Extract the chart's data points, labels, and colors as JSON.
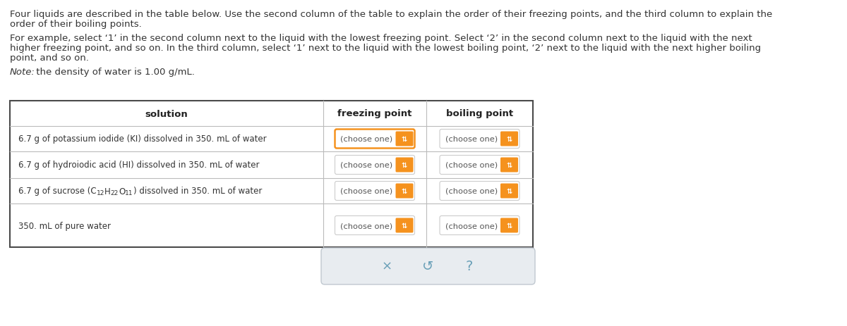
{
  "background_color": "#ffffff",
  "text_color": "#333333",
  "header_text_color": "#222222",
  "para1_line1": "Four liquids are described in the table below. Use the second column of the table to explain the order of their freezing points, and the third column to explain the",
  "para1_line2": "order of their boiling points.",
  "para2_line1": "For example, select ‘1’ in the second column next to the liquid with the lowest freezing point. Select ‘2’ in the second column next to the liquid with the next",
  "para2_line2": "higher freezing point, and so on. In the third column, select ‘1’ next to the liquid with the lowest boiling point, ‘2’ next to the liquid with the next higher boiling",
  "para2_line3": "point, and so on.",
  "note_italic": "Note:",
  "note_rest": " the density of water is 1.00 g/mL.",
  "col_headers": [
    "solution",
    "freezing point",
    "boiling point"
  ],
  "rows": [
    "6.7 g of potassium iodide (KI) dissolved in 350. mL of water",
    "6.7 g of hydroiodic acid (HI) dissolved in 350. mL of water",
    "sucrose_special",
    "350. mL of pure water"
  ],
  "sucrose_normal": "6.7 g of sucrose (C",
  "sucrose_sub1": "12",
  "sucrose_mid1": "H",
  "sucrose_sub2": "22",
  "sucrose_mid2": "O",
  "sucrose_sub3": "11",
  "sucrose_end": ") dissolved in 350. mL of water",
  "dropdown_text": "(choose one)",
  "dropdown_bg": "#ffffff",
  "dropdown_border": "#cccccc",
  "dropdown_btn_color": "#f5921e",
  "first_row_highlight_border": "#f5921e",
  "table_border_color": "#4a4a4a",
  "table_inner_border_color": "#bbbbbb",
  "footer_bg": "#e8ecf0",
  "footer_border_color": "#c0c8d0",
  "footer_icon_color": "#6aa0b8",
  "font_size_body": 9.5,
  "font_size_table_text": 9.0,
  "font_size_note": 9.5
}
